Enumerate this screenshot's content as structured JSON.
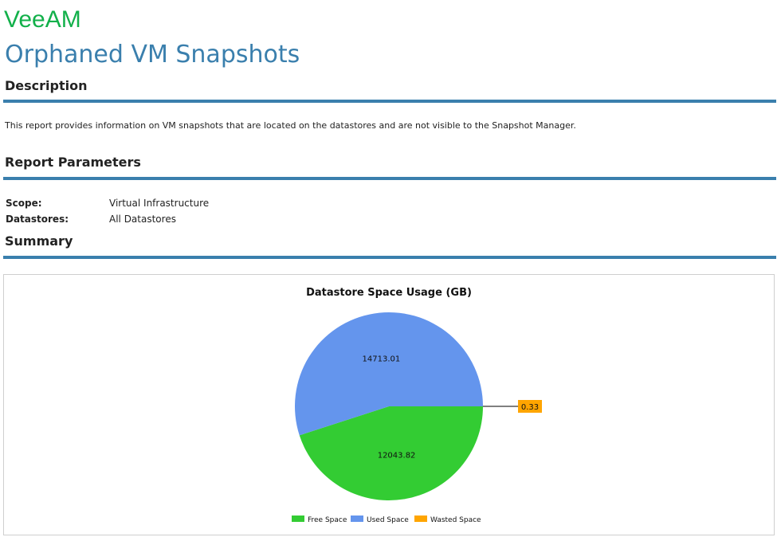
{
  "header": {
    "logo_text": "VeeAM",
    "title": "Orphaned VM Snapshots"
  },
  "description": {
    "heading": "Description",
    "text": "This report provides information on VM snapshots that are located on the datastores and are not visible to the Snapshot Manager."
  },
  "parameters": {
    "heading": "Report Parameters",
    "items": [
      {
        "label": "Scope:",
        "value": "Virtual Infrastructure"
      },
      {
        "label": "Datastores:",
        "value": "All Datastores"
      }
    ]
  },
  "summary": {
    "heading": "Summary"
  },
  "colors": {
    "accent": "#3a7fad",
    "brand": "#12b04a",
    "free": "#33cc33",
    "used": "#6495ed",
    "wasted": "#ffa500"
  },
  "chart_data": {
    "type": "pie",
    "title": "Datastore Space Usage (GB)",
    "categories": [
      "Free Space",
      "Used Space",
      "Wasted Space"
    ],
    "values": [
      12043.82,
      14713.01,
      0.33
    ],
    "data_labels": [
      "12043.82",
      "14713.01",
      "0.33"
    ],
    "colors": [
      "#33cc33",
      "#6495ed",
      "#ffa500"
    ],
    "legend_position": "bottom"
  }
}
